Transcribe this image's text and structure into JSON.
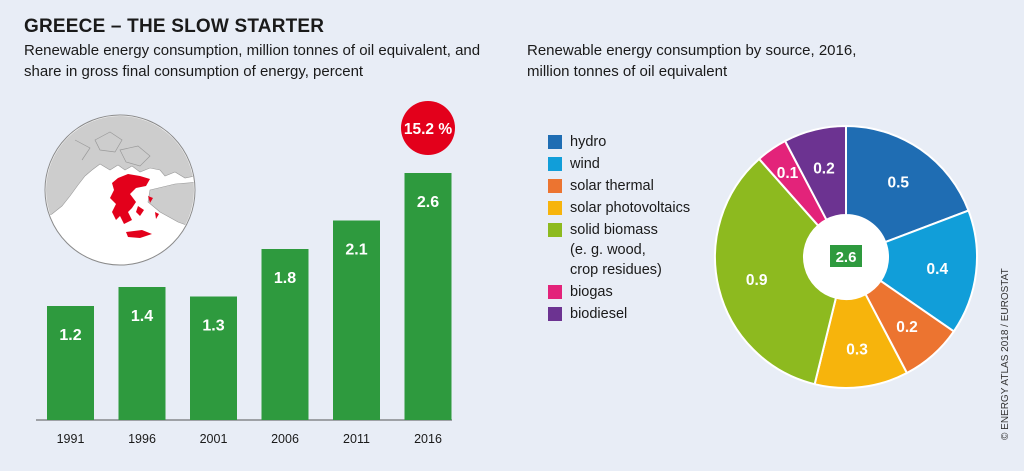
{
  "title": "GREECE – THE SLOW STARTER",
  "left_subtitle": "Renewable energy consumption, million tonnes of oil equivalent, and share in gross final consumption of energy, percent",
  "right_subtitle": "Renewable energy consumption by source, 2016, million tonnes of oil equivalent",
  "credit": "© ENERGY ATLAS 2018 / EUROSTAT",
  "colors": {
    "bar": "#2e9a3e",
    "badge": "#e3001b",
    "background": "#e8edf6"
  },
  "chart_data": [
    {
      "type": "bar",
      "categories": [
        "1991",
        "1996",
        "2001",
        "2006",
        "2011",
        "2016"
      ],
      "values": [
        1.2,
        1.4,
        1.3,
        1.8,
        2.1,
        2.6
      ],
      "data_labels": [
        "1.2",
        "1.4",
        "1.3",
        "1.8",
        "2.1",
        "2.6"
      ],
      "ylim": [
        0,
        2.6
      ],
      "annotation": "15.2 %",
      "grid": false
    },
    {
      "type": "pie",
      "donut": true,
      "center_label": "2.6",
      "slices": [
        {
          "label": "hydro",
          "value": 0.5,
          "display": "0.5",
          "color": "#1f6db3"
        },
        {
          "label": "wind",
          "value": 0.4,
          "display": "0.4",
          "color": "#119ed9"
        },
        {
          "label": "solar thermal",
          "value": 0.2,
          "display": "0.2",
          "color": "#ec7430"
        },
        {
          "label": "solar photovoltaics",
          "value": 0.3,
          "display": "0.3",
          "color": "#f7b40c"
        },
        {
          "label": "solid biomass (e. g. wood, crop residues)",
          "value": 0.9,
          "display": "0.9",
          "color": "#8dba1f"
        },
        {
          "label": "biogas",
          "value": 0.1,
          "display": "0.1",
          "color": "#e3237a"
        },
        {
          "label": "biodiesel",
          "value": 0.2,
          "display": "0.2",
          "color": "#6c3391"
        }
      ],
      "legend": {
        "position": "left",
        "items": [
          {
            "lines": [
              "hydro"
            ],
            "color": "#1f6db3"
          },
          {
            "lines": [
              "wind"
            ],
            "color": "#119ed9"
          },
          {
            "lines": [
              "solar thermal"
            ],
            "color": "#ec7430"
          },
          {
            "lines": [
              "solar photovoltaics"
            ],
            "color": "#f7b40c"
          },
          {
            "lines": [
              "solid biomass",
              "(e. g. wood,",
              "crop residues)"
            ],
            "color": "#8dba1f"
          },
          {
            "lines": [
              "biogas"
            ],
            "color": "#e3237a"
          },
          {
            "lines": [
              "biodiesel"
            ],
            "color": "#6c3391"
          }
        ]
      }
    }
  ]
}
